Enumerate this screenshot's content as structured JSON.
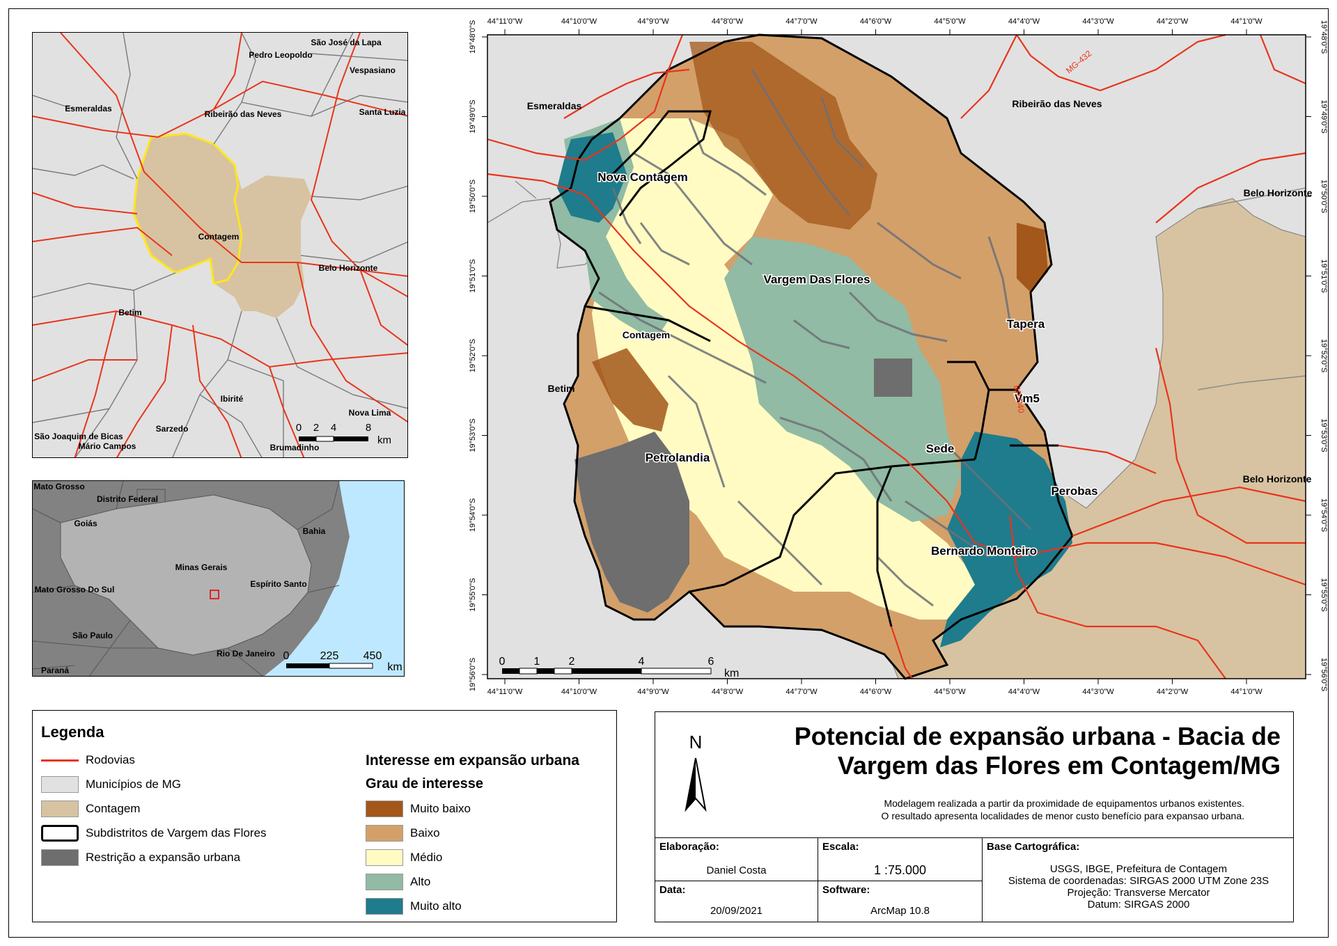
{
  "colors": {
    "municipios": "#e1e1e1",
    "contagem": "#d7c3a1",
    "restricao": "#6e6e6e",
    "rodovias": "#e8341c",
    "muito_baixo": "#a3571a",
    "baixo": "#d3a06a",
    "medio": "#fffbc2",
    "alto": "#91bba4",
    "muito_alto": "#1f7c8c",
    "water": "#bee8ff",
    "state_dark": "#828282",
    "state_light": "#b3b3b3",
    "drain": "#6e7078"
  },
  "locator_map": {
    "labels": [
      "São José da Lapa",
      "Pedro Leopoldo",
      "Vespasiano",
      "Esmeraldas",
      "Ribeirão das Neves",
      "Santa Luzia",
      "Contagem",
      "Belo Horizonte",
      "Betim",
      "Ibirité",
      "Nova Lima",
      "Sarzedo",
      "São Joaquim de Bicas",
      "Mário Campos",
      "Brumadinho"
    ],
    "scale": {
      "ticks": [
        "0",
        "2",
        "4",
        "8"
      ],
      "unit": "km"
    }
  },
  "state_map": {
    "labels": [
      "Mato Grosso",
      "Distrito Federal",
      "Goiás",
      "Bahia",
      "Minas Gerais",
      "Espírito Santo",
      "Mato Grosso Do Sul",
      "São Paulo",
      "Rio De Janeiro",
      "Paraná"
    ],
    "scale": {
      "ticks": [
        "0",
        "225",
        "450"
      ],
      "unit": "km"
    }
  },
  "main_map": {
    "lon_labels": [
      "44°11'0\"W",
      "44°10'0\"W",
      "44°9'0\"W",
      "44°8'0\"W",
      "44°7'0\"W",
      "44°6'0\"W",
      "44°5'0\"W",
      "44°4'0\"W",
      "44°3'0\"W",
      "44°2'0\"W",
      "44°1'0\"W"
    ],
    "lat_labels": [
      "19°48'0\"S",
      "19°49'0\"S",
      "19°50'0\"S",
      "19°51'0\"S",
      "19°52'0\"S",
      "19°53'0\"S",
      "19°54'0\"S",
      "19°55'0\"S",
      "19°56'0\"S"
    ],
    "municipality_labels": [
      "Esmeraldas",
      "Ribeirão das Neves",
      "Belo Horizonte",
      "Betim",
      "Belo Horizonte"
    ],
    "subdistrict_labels": [
      "Nova Contagem",
      "Vargem Das Flores",
      "Contagem",
      "Tapera",
      "Vm5",
      "Sede",
      "Petrolandia",
      "Perobas",
      "Bernardo Monteiro"
    ],
    "road_labels": [
      "MG-432",
      "BR-040"
    ],
    "scale": {
      "ticks": [
        "0",
        "1",
        "2",
        "4",
        "6"
      ],
      "unit": "km"
    }
  },
  "legend": {
    "title": "Legenda",
    "items": [
      {
        "label": "Rodovias",
        "kind": "line",
        "color": "#e8341c"
      },
      {
        "label": "Municípios de MG",
        "kind": "fill",
        "color": "#e1e1e1"
      },
      {
        "label": "Contagem",
        "kind": "fill",
        "color": "#d7c3a1"
      },
      {
        "label": "Subdistritos de Vargem das Flores",
        "kind": "outline",
        "color": "#ffffff"
      },
      {
        "label": "Restrição a expansão urbana",
        "kind": "fill",
        "color": "#6e6e6e"
      }
    ],
    "interest_title": "Interesse em expansão urbana",
    "grau_title": "Grau de interesse",
    "grades": [
      {
        "label": "Muito baixo",
        "color": "#a3571a"
      },
      {
        "label": "Baixo",
        "color": "#d3a06a"
      },
      {
        "label": "Médio",
        "color": "#fffbc2"
      },
      {
        "label": "Alto",
        "color": "#91bba4"
      },
      {
        "label": "Muito alto",
        "color": "#1f7c8c"
      }
    ]
  },
  "title_block": {
    "north": "N",
    "title_line1": "Potencial de expansão urbana - Bacia de",
    "title_line2": "Vargem das Flores em Contagem/MG",
    "subtitle_line1": "Modelagem realizada a partir da proximidade de equipamentos urbanos existentes.",
    "subtitle_line2": "O resultado apresenta localidades de menor custo benefício para expansao urbana.",
    "elaboracao_label": "Elaboração:",
    "elaboracao_value": "Daniel Costa",
    "escala_label": "Escala:",
    "escala_value": "1  :75.000",
    "data_label": "Data:",
    "data_value": "20/09/2021",
    "software_label": "Software:",
    "software_value": "ArcMap 10.8",
    "base_label": "Base Cartográfica:",
    "base_lines": [
      "USGS, IBGE, Prefeitura de Contagem",
      "Sistema de coordenadas: SIRGAS 2000 UTM Zone 23S",
      "Projeção: Transverse Mercator",
      "Datum: SIRGAS 2000"
    ]
  }
}
